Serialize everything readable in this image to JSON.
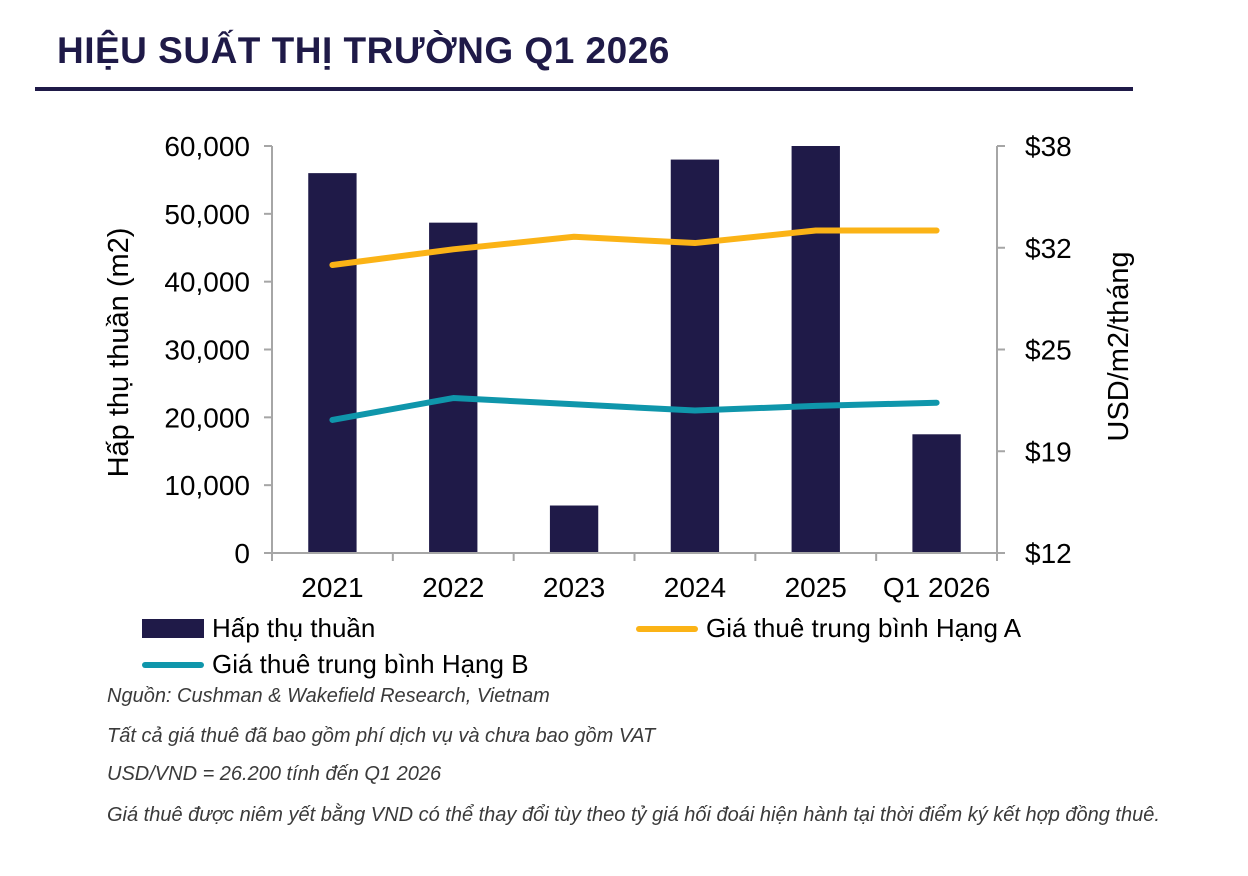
{
  "header": {
    "title": "HIỆU SUẤT THỊ TRƯỜNG Q1 2026"
  },
  "colors": {
    "bar": "#1f1a48",
    "grade_a": "#fbb316",
    "grade_b": "#0f96ab",
    "axis": "#a6a6a6",
    "title": "#1f1a48"
  },
  "chart_data": {
    "type": "bar",
    "categories": [
      "2021",
      "2022",
      "2023",
      "2024",
      "2025",
      "Q1 2026"
    ],
    "bars": {
      "name": "Hấp thụ thuần",
      "values": [
        56000,
        48700,
        7000,
        58000,
        60000,
        17500
      ],
      "axis": "left"
    },
    "lines": [
      {
        "name": "Giá thuê trung bình Hạng A",
        "values": [
          30.4,
          31.4,
          32.2,
          31.8,
          32.6,
          32.6
        ],
        "axis": "right"
      },
      {
        "name": "Giá thuê trung bình Hạng B",
        "values": [
          20.5,
          21.9,
          21.5,
          21.1,
          21.4,
          21.6
        ],
        "axis": "right"
      }
    ],
    "ylabel": "Hấp thụ thuần (m2)",
    "y2label": "USD/m2/tháng",
    "ylim": [
      0,
      60000
    ],
    "y2lim": [
      12,
      38
    ],
    "yticks": [
      "0",
      "10,000",
      "20,000",
      "30,000",
      "40,000",
      "50,000",
      "60,000"
    ],
    "y2ticks": [
      "$12",
      "$19",
      "$25",
      "$32",
      "$38"
    ],
    "grid": false,
    "legend_position": "bottom"
  },
  "notes": [
    "Nguồn: Cushman & Wakefield Research, Vietnam",
    "Tất cả giá thuê đã bao gồm phí dịch vụ và chưa bao gồm VAT",
    "USD/VND = 26.200 tính đến Q1 2026",
    "Giá thuê được niêm yết bằng VND có thể thay đổi tùy theo tỷ giá hối đoái hiện hành tại thời điểm ký kết hợp đồng thuê."
  ]
}
